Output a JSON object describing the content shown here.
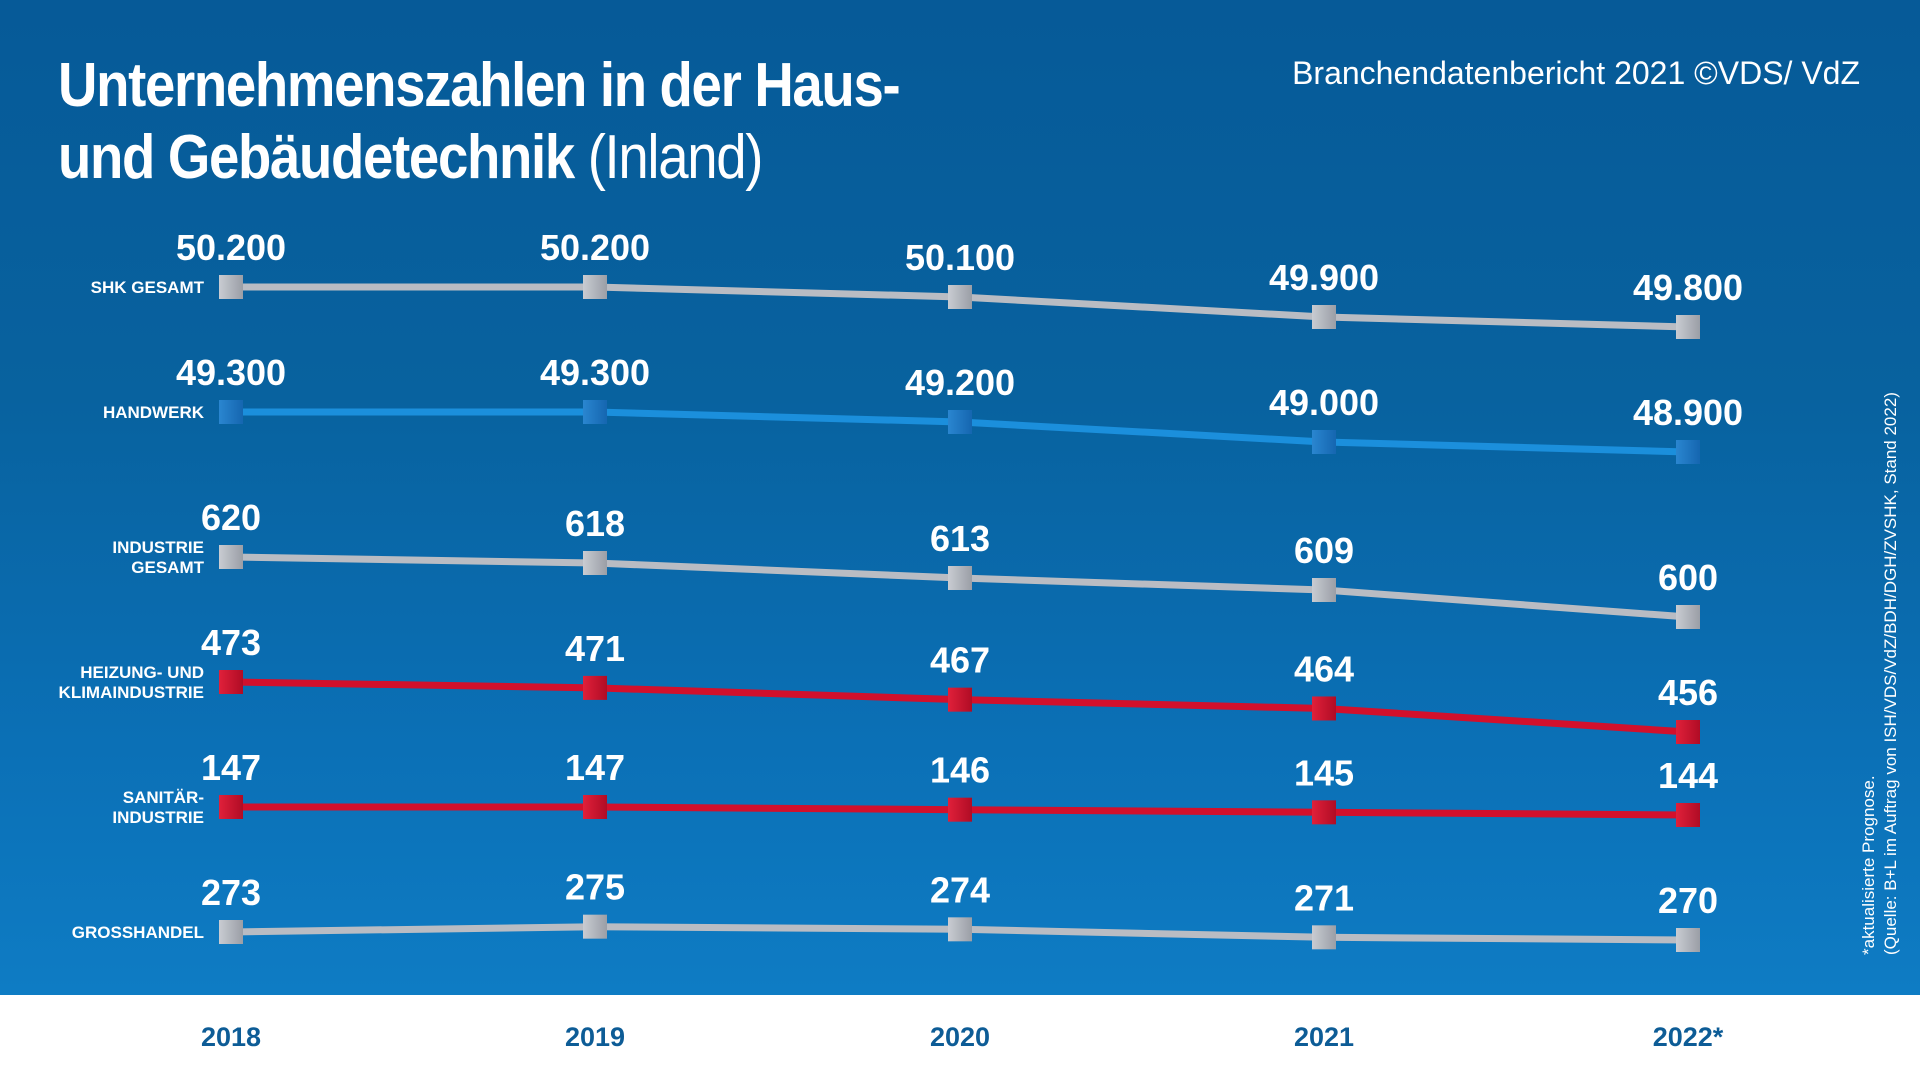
{
  "header": {
    "title_line1": "Unternehmenszahlen in der Haus-",
    "title_line2_bold": "und Gebäudetechnik",
    "title_line2_light": "(Inland)",
    "source": "Branchendatenbericht 2021 ©VDS/ VdZ"
  },
  "footnote": {
    "line1": "*aktualisierte Prognose.",
    "line2": "(Quelle: B+L im Auftrag von ISH/VDS/VdZ/BDH/DGH/ZVSHK, Stand 2022)"
  },
  "colors": {
    "grey": "#b9bcc3",
    "blue": "#1b8fdc",
    "red": "#d2102c",
    "year_text": "#0d5c96"
  },
  "chart_data": {
    "type": "line",
    "title": "Unternehmenszahlen in der Haus- und Gebäudetechnik (Inland)",
    "x": [
      "2018",
      "2019",
      "2020",
      "2021",
      "2022*"
    ],
    "xlabel": "",
    "ylabel": "",
    "grid": false,
    "legend": "left (inline series labels)",
    "series": [
      {
        "name": "SHK GESAMT",
        "label_lines": [
          "SHK GESAMT"
        ],
        "color": "grey",
        "values": [
          50200,
          50200,
          50100,
          49900,
          49800
        ],
        "labels": [
          "50.200",
          "50.200",
          "50.100",
          "49.900",
          "49.800"
        ]
      },
      {
        "name": "HANDWERK",
        "label_lines": [
          "HANDWERK"
        ],
        "color": "blue",
        "values": [
          49300,
          49300,
          49200,
          49000,
          48900
        ],
        "labels": [
          "49.300",
          "49.300",
          "49.200",
          "49.000",
          "48.900"
        ]
      },
      {
        "name": "INDUSTRIE GESAMT",
        "label_lines": [
          "INDUSTRIE",
          "GESAMT"
        ],
        "color": "grey",
        "values": [
          620,
          618,
          613,
          609,
          600
        ],
        "labels": [
          "620",
          "618",
          "613",
          "609",
          "600"
        ]
      },
      {
        "name": "HEIZUNG- UND KLIMAINDUSTRIE",
        "label_lines": [
          "HEIZUNG- UND",
          "KLIMAINDUSTRIE"
        ],
        "color": "red",
        "values": [
          473,
          471,
          467,
          464,
          456
        ],
        "labels": [
          "473",
          "471",
          "467",
          "464",
          "456"
        ]
      },
      {
        "name": "SANITÄR-INDUSTRIE",
        "label_lines": [
          "SANITÄR-",
          "INDUSTRIE"
        ],
        "color": "red",
        "values": [
          147,
          147,
          146,
          145,
          144
        ],
        "labels": [
          "147",
          "147",
          "146",
          "145",
          "144"
        ]
      },
      {
        "name": "GROSSHANDEL",
        "label_lines": [
          "GROSSHANDEL"
        ],
        "color": "grey",
        "values": [
          273,
          275,
          274,
          271,
          270
        ],
        "labels": [
          "273",
          "275",
          "274",
          "271",
          "270"
        ]
      }
    ],
    "footnote": "*aktualisierte Prognose."
  }
}
